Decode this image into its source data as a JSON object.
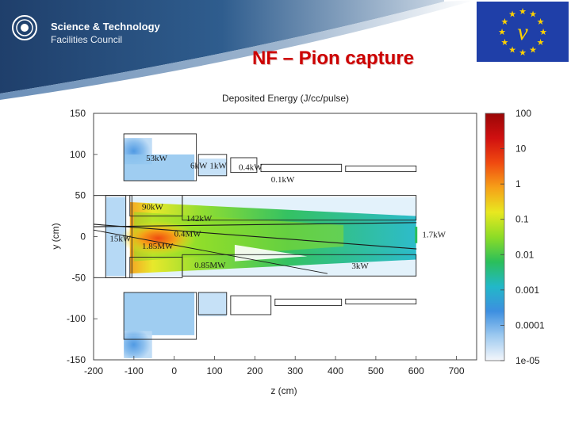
{
  "header": {
    "logo_line1": "Science & Technology",
    "logo_line2": "Facilities Council",
    "title": "NF – Pion capture",
    "flag_symbol": "ν",
    "colors": {
      "band_dark": "#1f3f6b",
      "band_mid": "#5d7fa6",
      "title_red": "#cc0000",
      "flag_blue": "#1f3fa8",
      "flag_stars": "#ffd200"
    }
  },
  "chart_data": {
    "type": "heatmap",
    "title": "Deposited Energy (J/cc/pulse)",
    "xlabel": "z (cm)",
    "ylabel": "y (cm)",
    "xlim": [
      -200,
      750
    ],
    "ylim": [
      -150,
      150
    ],
    "x_ticks": [
      -200,
      -100,
      0,
      100,
      200,
      300,
      400,
      500,
      600,
      700
    ],
    "y_ticks": [
      150,
      100,
      50,
      0,
      -50,
      -100,
      -150
    ],
    "colorbar": {
      "scale": "log",
      "range": [
        1e-05,
        100
      ],
      "tick_labels": [
        "100",
        "10",
        "1",
        "0.1",
        "0.01",
        "0.001",
        "0.0001",
        "1e-05"
      ],
      "stops": [
        "#f4f6fb",
        "#9ecaf0",
        "#3d8fe0",
        "#22b8c8",
        "#2bbf5a",
        "#8ddc26",
        "#e8e820",
        "#f6a018",
        "#f04a10",
        "#d01010",
        "#9a0606"
      ]
    },
    "annotations": [
      {
        "label": "53kW",
        "z": -70,
        "y": 92
      },
      {
        "label": "6kW",
        "z": 40,
        "y": 83
      },
      {
        "label": "1kW",
        "z": 88,
        "y": 83
      },
      {
        "label": "0.4kW",
        "z": 160,
        "y": 81
      },
      {
        "label": "0.1kW",
        "z": 240,
        "y": 66
      },
      {
        "label": "90kW",
        "z": -80,
        "y": 33
      },
      {
        "label": "142kW",
        "z": 30,
        "y": 19
      },
      {
        "label": "0.4MW",
        "z": 0,
        "y": 0
      },
      {
        "label": "15kW",
        "z": -160,
        "y": -6
      },
      {
        "label": "1.85MW",
        "z": -80,
        "y": -15
      },
      {
        "label": "1.7kW",
        "z": 615,
        "y": -1
      },
      {
        "label": "0.85MW",
        "z": 50,
        "y": -38
      },
      {
        "label": "3kW",
        "z": 440,
        "y": -39
      }
    ]
  }
}
